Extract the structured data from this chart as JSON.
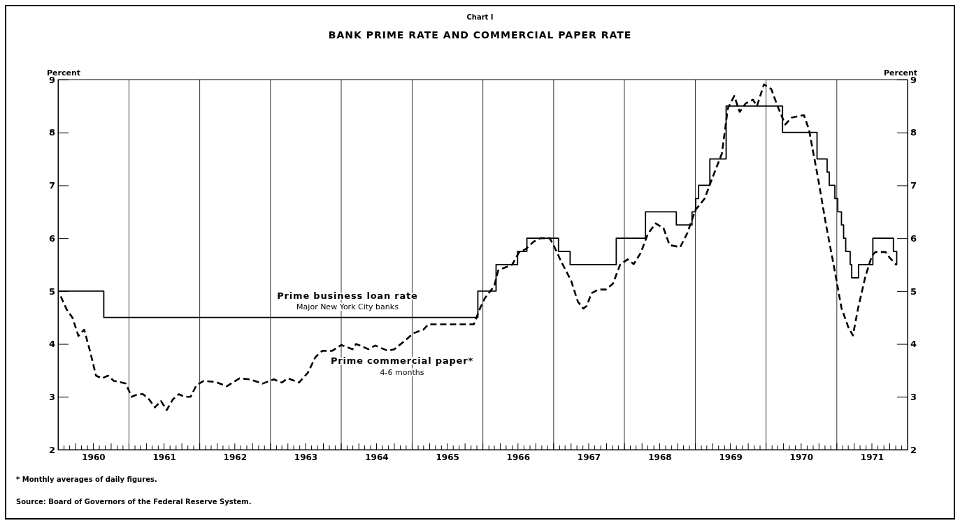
{
  "chart_data": {
    "type": "line",
    "title": "BANK PRIME RATE AND COMMERCIAL PAPER RATE",
    "ylabel": "Percent",
    "y2label": "Percent",
    "annotations": [
      "Chart I",
      "Major New York City banks",
      "4-6 months",
      "* Monthly averages of daily figures.",
      "Source: Board of Governors of the Federal Reserve System."
    ],
    "xlim": [
      "1960-01-01",
      "1972-01-01"
    ],
    "xticks": [
      {
        "value": "1960-07-01",
        "label": "1960"
      },
      {
        "value": "1961-07-01",
        "label": "1961"
      },
      {
        "value": "1962-07-01",
        "label": "1962"
      },
      {
        "value": "1963-07-01",
        "label": "1963"
      },
      {
        "value": "1964-07-01",
        "label": "1964"
      },
      {
        "value": "1965-07-01",
        "label": "1965"
      },
      {
        "value": "1966-07-01",
        "label": "1966"
      },
      {
        "value": "1967-07-01",
        "label": "1967"
      },
      {
        "value": "1968-07-01",
        "label": "1968"
      },
      {
        "value": "1969-07-01",
        "label": "1969"
      },
      {
        "value": "1970-07-01",
        "label": "1970"
      },
      {
        "value": "1971-07-01",
        "label": "1971"
      }
    ],
    "ylim": [
      2,
      9
    ],
    "yticks": [
      2,
      3,
      4,
      5,
      6,
      7,
      8,
      9
    ],
    "y2lim": [
      2,
      9
    ],
    "y2ticks": [
      2,
      3,
      4,
      5,
      6,
      7,
      8,
      9
    ],
    "grid": false,
    "ref_lines": [
      {
        "axis": "x",
        "value": "1961-01-01",
        "color": "#000000"
      },
      {
        "axis": "x",
        "value": "1962-01-01",
        "color": "#000000"
      },
      {
        "axis": "x",
        "value": "1963-01-01",
        "color": "#000000"
      },
      {
        "axis": "x",
        "value": "1964-01-01",
        "color": "#000000"
      },
      {
        "axis": "x",
        "value": "1965-01-01",
        "color": "#000000"
      },
      {
        "axis": "x",
        "value": "1966-01-01",
        "color": "#000000"
      },
      {
        "axis": "x",
        "value": "1967-01-01",
        "color": "#000000"
      },
      {
        "axis": "x",
        "value": "1968-01-01",
        "color": "#000000"
      },
      {
        "axis": "x",
        "value": "1969-01-01",
        "color": "#000000"
      },
      {
        "axis": "x",
        "value": "1970-01-01",
        "color": "#000000"
      },
      {
        "axis": "x",
        "value": "1971-01-01",
        "color": "#000000"
      }
    ],
    "series": [
      {
        "name": "Prime business loan rate",
        "type": "step",
        "color": "#000000",
        "line_style": "solid",
        "x": [
          "1960-01-01",
          "1960-08-24",
          "1965-12-06",
          "1966-03-10",
          "1966-06-29",
          "1966-08-16",
          "1967-01-26",
          "1967-03-27",
          "1967-11-20",
          "1968-04-19",
          "1968-09-25",
          "1968-12-15",
          "1969-01-03",
          "1969-01-18",
          "1969-03-17",
          "1969-06-09",
          "1970-03-27",
          "1970-09-21",
          "1970-11-12",
          "1970-11-23",
          "1970-12-22",
          "1971-01-06",
          "1971-01-25",
          "1971-02-05",
          "1971-02-16",
          "1971-03-11",
          "1971-03-19",
          "1971-04-23",
          "1971-07-06",
          "1971-10-20",
          "1971-11-06"
        ],
        "values": [
          5.0,
          4.5,
          5.0,
          5.5,
          5.75,
          6.0,
          5.75,
          5.5,
          6.0,
          6.5,
          6.25,
          6.5,
          6.75,
          7.0,
          7.5,
          8.5,
          8.0,
          7.5,
          7.25,
          7.0,
          6.75,
          6.5,
          6.25,
          6.0,
          5.75,
          5.5,
          5.25,
          5.5,
          6.0,
          5.75,
          5.5
        ]
      },
      {
        "name": "Prime commercial paper*",
        "color": "#000000",
        "line_style": "dashed",
        "x": [
          "1960-01-15",
          "1960-02-15",
          "1960-03-15",
          "1960-04-15",
          "1960-05-15",
          "1960-06-15",
          "1960-07-15",
          "1960-08-15",
          "1960-09-15",
          "1960-10-15",
          "1960-11-15",
          "1960-12-15",
          "1961-01-15",
          "1961-02-15",
          "1961-03-15",
          "1961-04-15",
          "1961-05-15",
          "1961-06-15",
          "1961-07-15",
          "1961-08-15",
          "1961-09-15",
          "1961-10-15",
          "1961-11-15",
          "1961-12-15",
          "1962-01-21",
          "1962-03-25",
          "1962-05-21",
          "1962-07-25",
          "1962-09-18",
          "1962-11-21",
          "1963-01-18",
          "1963-02-28",
          "1963-04-01",
          "1963-05-28",
          "1963-07-12",
          "1963-08-21",
          "1963-09-25",
          "1963-11-15",
          "1964-01-01",
          "1964-02-28",
          "1964-03-18",
          "1964-05-21",
          "1964-06-25",
          "1964-08-28",
          "1964-10-01",
          "1964-11-21",
          "1965-01-06",
          "1965-02-28",
          "1965-03-25",
          "1965-11-15",
          "1965-12-18",
          "1966-01-10",
          "1966-03-01",
          "1966-03-21",
          "1966-04-28",
          "1966-06-01",
          "1966-07-06",
          "1966-08-12",
          "1966-09-18",
          "1966-10-25",
          "1966-12-12",
          "1967-01-03",
          "1967-02-10",
          "1967-04-01",
          "1967-05-06",
          "1967-06-03",
          "1967-06-21",
          "1967-07-15",
          "1967-08-21",
          "1967-09-28",
          "1967-11-03",
          "1967-12-10",
          "1968-01-18",
          "1968-02-18",
          "1968-03-25",
          "1968-05-01",
          "1968-06-10",
          "1968-07-21",
          "1968-08-21",
          "1968-10-15",
          "1968-11-21",
          "1969-01-01",
          "1969-02-18",
          "1969-04-01",
          "1969-05-18",
          "1969-06-18",
          "1969-07-21",
          "1969-08-18",
          "1969-09-18",
          "1969-10-25",
          "1969-11-15",
          "1969-12-21",
          "1970-01-28",
          "1970-03-01",
          "1970-04-10",
          "1970-05-12",
          "1970-07-15",
          "1970-08-10",
          "1970-09-25",
          "1970-11-06",
          "1970-12-18",
          "1971-01-25",
          "1971-03-01",
          "1971-03-25",
          "1971-04-21",
          "1971-05-28",
          "1971-07-01",
          "1971-07-19",
          "1971-09-09",
          "1971-10-01",
          "1971-11-06"
        ],
        "values": [
          4.9,
          4.65,
          4.5,
          4.15,
          4.27,
          3.85,
          3.4,
          3.35,
          3.4,
          3.3,
          3.28,
          3.25,
          3.0,
          3.05,
          3.05,
          2.95,
          2.8,
          2.92,
          2.75,
          2.95,
          3.05,
          3.0,
          3.0,
          3.22,
          3.3,
          3.28,
          3.2,
          3.35,
          3.33,
          3.25,
          3.33,
          3.27,
          3.35,
          3.27,
          3.45,
          3.75,
          3.87,
          3.87,
          3.98,
          3.9,
          4.0,
          3.9,
          3.97,
          3.87,
          3.9,
          4.05,
          4.2,
          4.27,
          4.37,
          4.37,
          4.68,
          4.86,
          5.1,
          5.39,
          5.45,
          5.5,
          5.73,
          5.8,
          5.93,
          6.0,
          6.0,
          5.85,
          5.55,
          5.2,
          4.8,
          4.67,
          4.72,
          4.96,
          5.03,
          5.03,
          5.14,
          5.5,
          5.6,
          5.51,
          5.72,
          6.08,
          6.28,
          6.19,
          5.87,
          5.83,
          6.1,
          6.53,
          6.75,
          7.16,
          7.6,
          8.46,
          8.69,
          8.39,
          8.55,
          8.62,
          8.5,
          8.91,
          8.82,
          8.5,
          8.15,
          8.28,
          8.33,
          8.06,
          7.16,
          6.26,
          5.45,
          4.68,
          4.32,
          4.16,
          4.68,
          5.27,
          5.67,
          5.74,
          5.74,
          5.63,
          5.49
        ]
      }
    ]
  }
}
